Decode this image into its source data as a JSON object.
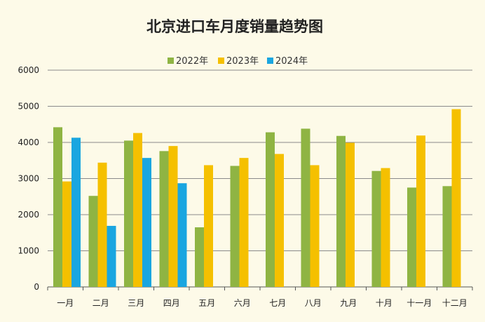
{
  "chart_data": {
    "type": "bar",
    "title": "北京进口车月度销量趋势图",
    "xlabel": "",
    "ylabel": "",
    "ylim": [
      0,
      6000
    ],
    "yticks": [
      0,
      1000,
      2000,
      3000,
      4000,
      5000,
      6000
    ],
    "grid": true,
    "legend_position": "top",
    "categories": [
      "一月",
      "二月",
      "三月",
      "四月",
      "五月",
      "六月",
      "七月",
      "八月",
      "九月",
      "十月",
      "十一月",
      "十二月"
    ],
    "series": [
      {
        "name": "2022年",
        "color": "#8fb443",
        "values": [
          4420,
          2520,
          4050,
          3760,
          1650,
          3350,
          4280,
          4380,
          4180,
          3210,
          2750,
          2790
        ]
      },
      {
        "name": "2023年",
        "color": "#f5c000",
        "values": [
          2920,
          3440,
          4260,
          3900,
          3370,
          3570,
          3680,
          3370,
          3990,
          3290,
          4190,
          4920
        ]
      },
      {
        "name": "2024年",
        "color": "#1aa6e0",
        "values": [
          4130,
          1690,
          3570,
          2870,
          null,
          null,
          null,
          null,
          null,
          null,
          null,
          null
        ]
      }
    ]
  }
}
